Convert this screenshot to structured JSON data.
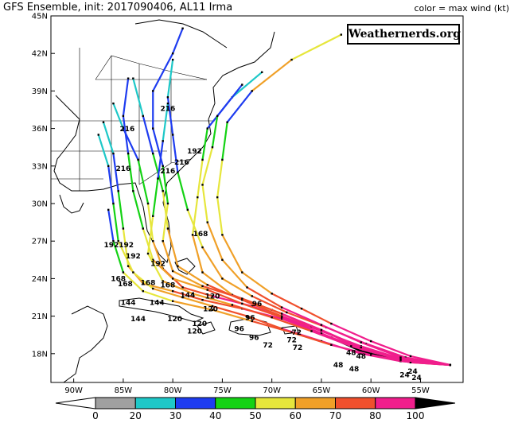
{
  "title": "GFS Ensemble, init: 2017090406, AL11 Irma",
  "legend_title": "color = max wind (kt)",
  "watermark": "Weathernerds.org",
  "axes": {
    "lon_ticks": [
      {
        "value": -90,
        "label": "90W"
      },
      {
        "value": -85,
        "label": "85W"
      },
      {
        "value": -80,
        "label": "80W"
      },
      {
        "value": -75,
        "label": "75W"
      },
      {
        "value": -70,
        "label": "70W"
      },
      {
        "value": -65,
        "label": "65W"
      },
      {
        "value": -60,
        "label": "60W"
      },
      {
        "value": -55,
        "label": "55W"
      }
    ],
    "lat_ticks": [
      {
        "value": 18,
        "label": "18N"
      },
      {
        "value": 21,
        "label": "21N"
      },
      {
        "value": 24,
        "label": "24N"
      },
      {
        "value": 27,
        "label": "27N"
      },
      {
        "value": 30,
        "label": "30N"
      },
      {
        "value": 33,
        "label": "33N"
      },
      {
        "value": 36,
        "label": "36N"
      },
      {
        "value": 39,
        "label": "39N"
      },
      {
        "value": 42,
        "label": "42N"
      },
      {
        "value": 45,
        "label": "45N"
      }
    ],
    "lon_range": [
      -92.3,
      -50.7
    ],
    "lat_range": [
      15.7,
      45
    ]
  },
  "colorbar": {
    "labels": [
      "0",
      "20",
      "30",
      "40",
      "50",
      "60",
      "70",
      "80",
      "100"
    ],
    "colors": [
      "#ffffff",
      "#a0a0a0",
      "#1ec8c8",
      "#1e3cf0",
      "#14d214",
      "#e6e63c",
      "#f0a028",
      "#f0502d",
      "#f01e8c",
      "#000000"
    ]
  },
  "chart_data": {
    "type": "map-track",
    "tracks": [
      {
        "points": [
          [
            -52,
            17.1,
            60
          ],
          [
            -56,
            17.3,
            70
          ],
          [
            -60,
            18,
            80
          ],
          [
            -64,
            19.3,
            80
          ],
          [
            -68,
            20.6,
            80
          ],
          [
            -72,
            21.8,
            80
          ],
          [
            -76,
            22.6,
            80
          ],
          [
            -79,
            23.3,
            70
          ],
          [
            -81,
            24.8,
            70
          ],
          [
            -82,
            27,
            60
          ],
          [
            -82.5,
            30,
            50
          ],
          [
            -83.5,
            33.5,
            40
          ],
          [
            -85,
            36,
            30
          ],
          [
            -86,
            38,
            20
          ]
        ]
      },
      {
        "points": [
          [
            -52,
            17.1,
            60
          ],
          [
            -57,
            17.6,
            80
          ],
          [
            -61,
            18.6,
            80
          ],
          [
            -65,
            19.8,
            80
          ],
          [
            -69,
            21,
            80
          ],
          [
            -73,
            22.3,
            70
          ],
          [
            -76.5,
            23.5,
            70
          ],
          [
            -79.5,
            25,
            60
          ],
          [
            -80.5,
            28,
            60
          ],
          [
            -81,
            31,
            50
          ],
          [
            -82,
            34,
            40
          ],
          [
            -83,
            37,
            30
          ],
          [
            -84,
            40,
            20
          ]
        ]
      },
      {
        "points": [
          [
            -52,
            17.1,
            60
          ],
          [
            -57,
            17.4,
            80
          ],
          [
            -61,
            18.2,
            100
          ],
          [
            -65,
            19.6,
            100
          ],
          [
            -69,
            20.8,
            80
          ],
          [
            -73,
            21.6,
            80
          ],
          [
            -77,
            22.3,
            70
          ],
          [
            -80,
            23,
            70
          ],
          [
            -83,
            23.6,
            60
          ],
          [
            -84.5,
            25,
            60
          ],
          [
            -85,
            28,
            50
          ],
          [
            -85.5,
            31,
            40
          ],
          [
            -86,
            34,
            30
          ],
          [
            -87,
            36.5,
            20
          ]
        ]
      },
      {
        "points": [
          [
            -52,
            17.1,
            60
          ],
          [
            -57,
            17.6,
            80
          ],
          [
            -62,
            18.8,
            80
          ],
          [
            -66,
            20.2,
            80
          ],
          [
            -70,
            21.5,
            70
          ],
          [
            -74,
            22.7,
            70
          ],
          [
            -77,
            24.5,
            60
          ],
          [
            -78,
            27.5,
            60
          ],
          [
            -77.5,
            30.5,
            50
          ],
          [
            -77,
            33.5,
            50
          ],
          [
            -76.5,
            36,
            40
          ],
          [
            -74,
            38.5,
            30
          ],
          [
            -71,
            40.5,
            20
          ]
        ]
      },
      {
        "points": [
          [
            -52,
            17.1,
            60
          ],
          [
            -56,
            17.8,
            80
          ],
          [
            -60,
            19,
            80
          ],
          [
            -64,
            20.4,
            80
          ],
          [
            -67,
            21.6,
            70
          ],
          [
            -70,
            22.8,
            70
          ],
          [
            -73,
            24.5,
            60
          ],
          [
            -75,
            27.5,
            60
          ],
          [
            -75.5,
            30.5,
            50
          ],
          [
            -75,
            33.5,
            50
          ],
          [
            -74.5,
            36.5,
            40
          ],
          [
            -72,
            39,
            30
          ],
          [
            -68,
            41.5,
            60
          ],
          [
            -63,
            43.5,
            50
          ]
        ]
      },
      {
        "points": [
          [
            -52,
            17.1,
            60
          ],
          [
            -57,
            17.5,
            80
          ],
          [
            -61,
            18.4,
            80
          ],
          [
            -65,
            19.6,
            80
          ],
          [
            -69,
            20.9,
            80
          ],
          [
            -73,
            22,
            70
          ],
          [
            -76.5,
            23.1,
            70
          ],
          [
            -80,
            24,
            60
          ],
          [
            -82,
            25.5,
            60
          ],
          [
            -83,
            28,
            50
          ],
          [
            -84,
            31,
            40
          ],
          [
            -84.5,
            34,
            40
          ],
          [
            -85,
            37,
            30
          ],
          [
            -84.5,
            40,
            30
          ]
        ]
      },
      {
        "points": [
          [
            -52,
            17.1,
            60
          ],
          [
            -57,
            17.4,
            80
          ],
          [
            -61,
            18,
            80
          ],
          [
            -65,
            19,
            80
          ],
          [
            -69,
            20,
            80
          ],
          [
            -72.5,
            21,
            70
          ],
          [
            -76,
            21.8,
            70
          ],
          [
            -79,
            22.5,
            60
          ],
          [
            -82,
            23.2,
            60
          ],
          [
            -84,
            24.5,
            50
          ],
          [
            -85.5,
            27,
            50
          ],
          [
            -86,
            30,
            40
          ],
          [
            -86.5,
            33,
            30
          ],
          [
            -87.5,
            35.5,
            20
          ]
        ]
      },
      {
        "points": [
          [
            -52,
            17.1,
            60
          ],
          [
            -56.5,
            17.7,
            80
          ],
          [
            -60.5,
            18.8,
            80
          ],
          [
            -64.5,
            20.1,
            80
          ],
          [
            -68.5,
            21.3,
            70
          ],
          [
            -72,
            22.6,
            70
          ],
          [
            -75,
            24,
            60
          ],
          [
            -77,
            26.5,
            60
          ],
          [
            -78.5,
            29.5,
            50
          ],
          [
            -79.5,
            32.5,
            40
          ],
          [
            -80,
            35.5,
            30
          ],
          [
            -80.5,
            38.5,
            30
          ],
          [
            -80,
            41.5,
            20
          ]
        ]
      },
      {
        "points": [
          [
            -52,
            17.1,
            60
          ],
          [
            -57,
            17.5,
            80
          ],
          [
            -62,
            18.6,
            80
          ],
          [
            -66,
            19.8,
            80
          ],
          [
            -70,
            20.9,
            70
          ],
          [
            -74,
            21.9,
            70
          ],
          [
            -78,
            22.8,
            60
          ],
          [
            -81,
            23.8,
            60
          ],
          [
            -82.5,
            26,
            50
          ],
          [
            -82,
            29,
            50
          ],
          [
            -81.5,
            32,
            40
          ],
          [
            -81,
            35,
            30
          ],
          [
            -80.5,
            38,
            20
          ]
        ]
      },
      {
        "points": [
          [
            -52,
            17.1,
            60
          ],
          [
            -56,
            17.3,
            80
          ],
          [
            -60,
            17.9,
            80
          ],
          [
            -64,
            18.7,
            80
          ],
          [
            -68,
            19.7,
            70
          ],
          [
            -72,
            20.6,
            70
          ],
          [
            -76,
            21.5,
            60
          ],
          [
            -80,
            22.2,
            60
          ],
          [
            -83,
            23,
            50
          ],
          [
            -85,
            24.5,
            50
          ],
          [
            -86,
            27,
            40
          ],
          [
            -86.5,
            29.5,
            30
          ]
        ]
      },
      {
        "points": [
          [
            -52,
            17.1,
            60
          ],
          [
            -57,
            17.7,
            80
          ],
          [
            -61,
            18.9,
            80
          ],
          [
            -65,
            20.3,
            80
          ],
          [
            -69,
            21.7,
            80
          ],
          [
            -72.5,
            23.3,
            70
          ],
          [
            -75,
            25.5,
            60
          ],
          [
            -76.5,
            28.5,
            60
          ],
          [
            -77,
            31.5,
            50
          ],
          [
            -76,
            34.5,
            50
          ],
          [
            -75.5,
            37,
            40
          ],
          [
            -73,
            39.5,
            30
          ]
        ]
      },
      {
        "points": [
          [
            -52,
            17.1,
            60
          ],
          [
            -57,
            17.5,
            80
          ],
          [
            -61,
            18.5,
            80
          ],
          [
            -65,
            19.9,
            80
          ],
          [
            -69,
            21.2,
            80
          ],
          [
            -73,
            22.4,
            70
          ],
          [
            -77,
            23.4,
            70
          ],
          [
            -80,
            24.6,
            60
          ],
          [
            -81,
            27,
            60
          ],
          [
            -80.5,
            30,
            50
          ],
          [
            -81,
            33,
            40
          ],
          [
            -82,
            36,
            30
          ],
          [
            -82,
            39,
            30
          ],
          [
            -80,
            42,
            30
          ],
          [
            -79,
            44,
            30
          ]
        ]
      }
    ],
    "hour_labels": [
      {
        "text": "216",
        "lon": -80.5,
        "lat": 37.4
      },
      {
        "text": "216",
        "lon": -84.6,
        "lat": 35.8
      },
      {
        "text": "216",
        "lon": -85,
        "lat": 32.6
      },
      {
        "text": "216",
        "lon": -80.5,
        "lat": 32.4
      },
      {
        "text": "216",
        "lon": -79.1,
        "lat": 33.1
      },
      {
        "text": "192",
        "lon": -77.8,
        "lat": 34
      },
      {
        "text": "168",
        "lon": -77.2,
        "lat": 27.4
      },
      {
        "text": "192",
        "lon": -86.2,
        "lat": 26.5
      },
      {
        "text": "192",
        "lon": -84.7,
        "lat": 26.5
      },
      {
        "text": "192",
        "lon": -84,
        "lat": 25.6
      },
      {
        "text": "192",
        "lon": -81.5,
        "lat": 25
      },
      {
        "text": "144",
        "lon": -78.5,
        "lat": 22.5
      },
      {
        "text": "168",
        "lon": -85.5,
        "lat": 23.8
      },
      {
        "text": "168",
        "lon": -84.8,
        "lat": 23.4
      },
      {
        "text": "168",
        "lon": -82.5,
        "lat": 23.5
      },
      {
        "text": "168",
        "lon": -80.5,
        "lat": 23.3
      },
      {
        "text": "120",
        "lon": -76,
        "lat": 22.4
      },
      {
        "text": "144",
        "lon": -84.5,
        "lat": 21.9
      },
      {
        "text": "144",
        "lon": -81.6,
        "lat": 21.9
      },
      {
        "text": "120",
        "lon": -76.2,
        "lat": 21.4
      },
      {
        "text": "144",
        "lon": -83.5,
        "lat": 20.6
      },
      {
        "text": "120",
        "lon": -79.8,
        "lat": 20.6
      },
      {
        "text": "120",
        "lon": -77.3,
        "lat": 20.2
      },
      {
        "text": "120",
        "lon": -77.8,
        "lat": 19.6
      },
      {
        "text": "96",
        "lon": -71.5,
        "lat": 21.8
      },
      {
        "text": "96",
        "lon": -72.2,
        "lat": 20.7
      },
      {
        "text": "96",
        "lon": -73.3,
        "lat": 19.8
      },
      {
        "text": "96",
        "lon": -71.8,
        "lat": 19.1
      },
      {
        "text": "72",
        "lon": -67.5,
        "lat": 19.5
      },
      {
        "text": "72",
        "lon": -68,
        "lat": 18.9
      },
      {
        "text": "72",
        "lon": -67.4,
        "lat": 18.3
      },
      {
        "text": "72",
        "lon": -70.4,
        "lat": 18.5
      },
      {
        "text": "48",
        "lon": -62,
        "lat": 17.9
      },
      {
        "text": "48",
        "lon": -61,
        "lat": 17.6
      },
      {
        "text": "48",
        "lon": -63.3,
        "lat": 16.9
      },
      {
        "text": "48",
        "lon": -61.7,
        "lat": 16.6
      },
      {
        "text": "24",
        "lon": -55.8,
        "lat": 16.4
      },
      {
        "text": "24",
        "lon": -56.6,
        "lat": 16.1
      },
      {
        "text": "24",
        "lon": -55.4,
        "lat": 15.9
      }
    ]
  }
}
